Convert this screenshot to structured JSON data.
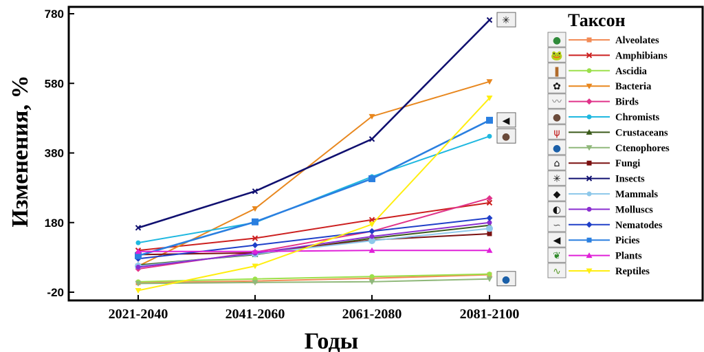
{
  "chart_data": {
    "type": "line",
    "title": "",
    "xlabel": "Годы",
    "ylabel": "Изменения, %",
    "categories": [
      "2021-2040",
      "2041-2060",
      "2061-2080",
      "2081-2100"
    ],
    "yticks": [
      -20,
      180,
      380,
      580,
      780
    ],
    "ylim": [
      -30,
      790
    ],
    "grid": false,
    "legend_title": "Таксон",
    "legend_position": "right",
    "series": [
      {
        "name": "Alveolates",
        "color": "#f28b56",
        "marker": "square",
        "values": [
          7,
          12,
          20,
          30
        ]
      },
      {
        "name": "Amphibians",
        "color": "#cc1f1f",
        "marker": "x",
        "values": [
          100,
          135,
          188,
          237
        ]
      },
      {
        "name": "Ascidia",
        "color": "#9be04a",
        "marker": "circle",
        "values": [
          10,
          18,
          25,
          32
        ]
      },
      {
        "name": "Bacteria",
        "color": "#e8871e",
        "marker": "triangle-down",
        "values": [
          55,
          220,
          485,
          585
        ]
      },
      {
        "name": "Birds",
        "color": "#e0338a",
        "marker": "diamond",
        "values": [
          47,
          95,
          155,
          250
        ]
      },
      {
        "name": "Chromists",
        "color": "#1fb8e0",
        "marker": "circle",
        "values": [
          122,
          180,
          312,
          428
        ]
      },
      {
        "name": "Crustaceans",
        "color": "#3a5a1a",
        "marker": "triangle",
        "values": [
          58,
          88,
          135,
          172
        ]
      },
      {
        "name": "Ctenophores",
        "color": "#8fb87a",
        "marker": "triangle-down",
        "values": [
          5,
          8,
          10,
          18
        ]
      },
      {
        "name": "Fungi",
        "color": "#7a1010",
        "marker": "square",
        "values": [
          88,
          93,
          130,
          148
        ]
      },
      {
        "name": "Insects",
        "color": "#101070",
        "marker": "x",
        "values": [
          165,
          270,
          420,
          762
        ]
      },
      {
        "name": "Mammals",
        "color": "#8ec8ea",
        "marker": "circle",
        "values": [
          55,
          90,
          128,
          163
        ]
      },
      {
        "name": "Molluscs",
        "color": "#8a2ed0",
        "marker": "circle",
        "values": [
          52,
          92,
          140,
          180
        ]
      },
      {
        "name": "Nematodes",
        "color": "#1f3fc8",
        "marker": "diamond",
        "values": [
          76,
          115,
          155,
          193
        ]
      },
      {
        "name": "Picies",
        "color": "#2a7fe0",
        "marker": "square",
        "values": [
          85,
          182,
          306,
          474
        ]
      },
      {
        "name": "Plants",
        "color": "#e020d8",
        "marker": "triangle",
        "values": [
          97,
          97,
          100,
          100
        ]
      },
      {
        "name": "Reptiles",
        "color": "#ffee10",
        "marker": "triangle-down",
        "values": [
          -15,
          55,
          175,
          538
        ]
      }
    ],
    "legend_icons": [
      "protist-icon",
      "frog-icon",
      "ascidian-icon",
      "bacteria-icon",
      "bird-icon",
      "chromist-icon",
      "crayfish-icon",
      "ctenophore-icon",
      "mushroom-icon",
      "insect-icon",
      "mammal-icon",
      "mollusc-icon",
      "nematode-icon",
      "fish-icon",
      "plant-icon",
      "reptile-icon"
    ],
    "point_icons": [
      {
        "icon": "insect-icon",
        "series": "Insects"
      },
      {
        "icon": "fish-icon",
        "series": "Picies"
      },
      {
        "icon": "chromist-icon",
        "series": "Chromists"
      },
      {
        "icon": "ctenophore-icon",
        "series": "Ctenophores"
      }
    ]
  }
}
